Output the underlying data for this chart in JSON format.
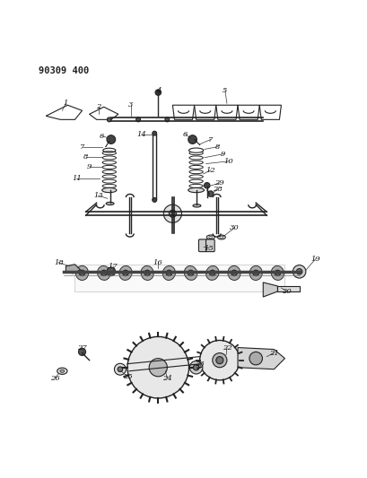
{
  "title": "90309 400",
  "bg_color": "#ffffff",
  "line_color": "#222222",
  "figsize": [
    4.09,
    5.33
  ],
  "dpi": 100
}
